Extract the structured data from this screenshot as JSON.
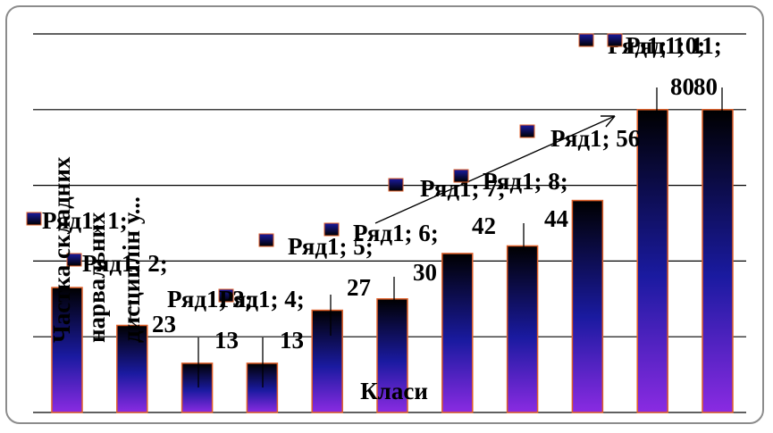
{
  "chart_data": {
    "type": "bar",
    "series": [
      {
        "name": "Ряд1",
        "categories": [
          "1",
          "2",
          "3",
          "4",
          "5",
          "6",
          "7",
          "8",
          "9",
          "10",
          "11"
        ],
        "values": [
          33,
          23,
          13,
          13,
          27,
          30,
          42,
          44,
          56,
          80,
          80
        ]
      }
    ],
    "data_labels": [
      "Ряд1; 1;",
      "Ряд1; 2; 23",
      "Ряд1; 3; 13",
      "Ряд1; 4; 13",
      "Ряд1; 5; 27",
      "Ряд1; 6; 30",
      "Ряд1; 7; 42",
      "Ряд1; 8; 44",
      "Ряд1; 56",
      "Ряд1; 10; 80",
      "Ряд1; 11; 80"
    ],
    "xlabel": "Класи",
    "ylabel": "Частка складних нарвальних дисциплін у...",
    "ylim": [
      0,
      100
    ],
    "grid": true,
    "colors": {
      "bar_top": "#000000",
      "bar_mid": "#1a1aa0",
      "bar_bottom": "#8a2be2",
      "bar_border": "#e0602a"
    }
  }
}
